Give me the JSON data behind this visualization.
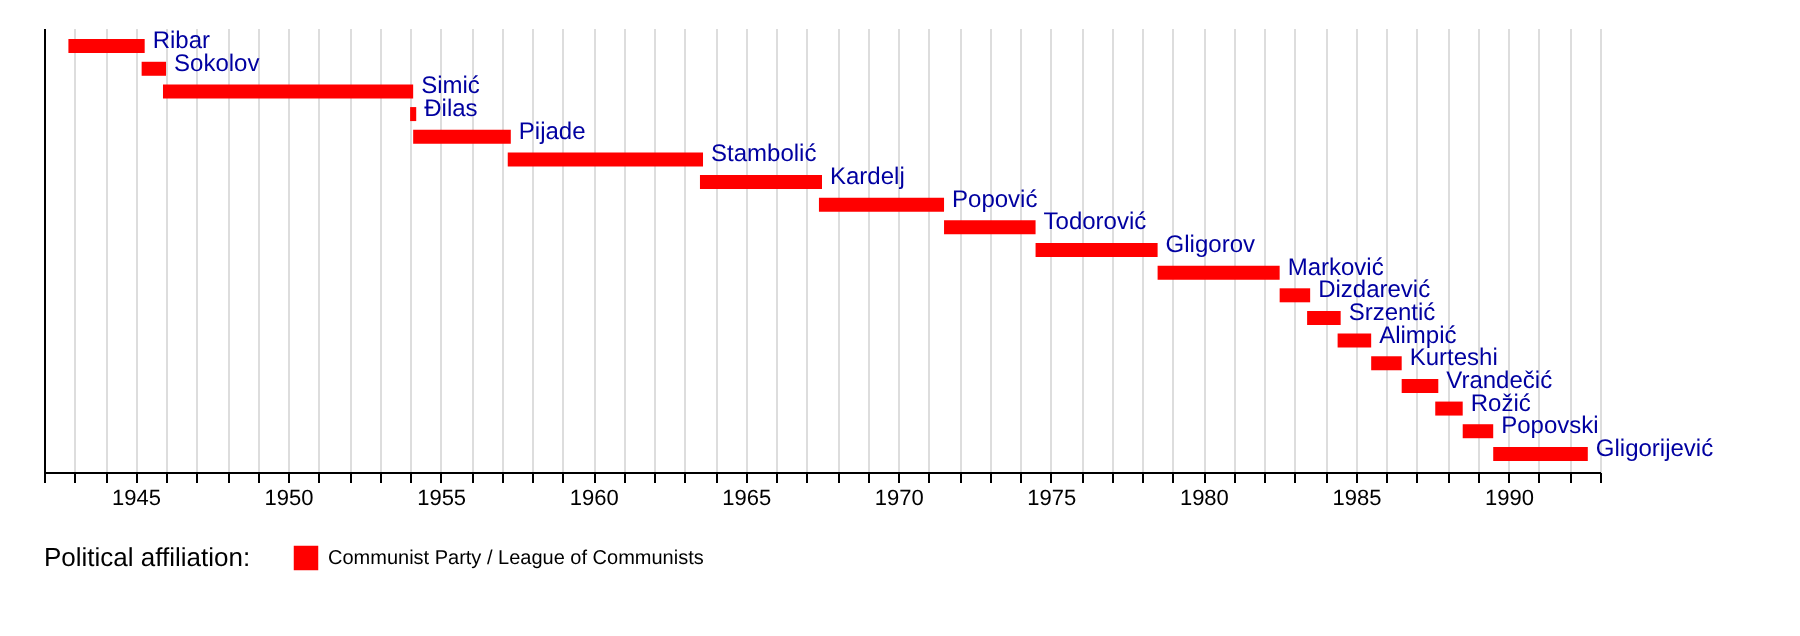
{
  "chart_data": {
    "type": "bar",
    "orientation": "horizontal",
    "legend_title": "Political affiliation:",
    "legend": "bottom",
    "grid": "x",
    "tick_labels": "x",
    "categories": [
      "Ribar",
      "Sokolov",
      "Simić",
      "Đilas",
      "Pijade",
      "Stambolić",
      "Kardelj",
      "Popović",
      "Todorović",
      "Gligorov",
      "Marković",
      "Dizdarević",
      "Srzentić",
      "Alimpić",
      "Kurteshi",
      "Vrandečić",
      "Rožić",
      "Popovski",
      "Gligorijević"
    ],
    "series": [
      {
        "name": "Communist Party / League of Communists",
        "color": "#ff0000",
        "base": [
          1942.8,
          1945.2,
          1945.9,
          1954.0,
          1954.1,
          1957.2,
          1963.5,
          1967.4,
          1971.5,
          1974.5,
          1978.5,
          1982.5,
          1983.4,
          1984.4,
          1985.5,
          1986.5,
          1987.6,
          1988.5,
          1989.5
        ],
        "values": [
          2.5,
          0.8,
          8.2,
          0.2,
          3.2,
          6.4,
          4.0,
          4.1,
          3.0,
          4.0,
          4.0,
          1.0,
          1.1,
          1.1,
          1.0,
          1.2,
          0.9,
          1.0,
          3.1
        ]
      }
    ],
    "xlim": [
      1942,
      1993
    ],
    "xticks": [
      {
        "value": 1942,
        "label": null
      },
      {
        "value": 1943,
        "label": null
      },
      {
        "value": 1944,
        "label": null
      },
      1945,
      {
        "value": 1946,
        "label": null
      },
      {
        "value": 1947,
        "label": null
      },
      {
        "value": 1948,
        "label": null
      },
      {
        "value": 1949,
        "label": null
      },
      1950,
      {
        "value": 1951,
        "label": null
      },
      {
        "value": 1952,
        "label": null
      },
      {
        "value": 1953,
        "label": null
      },
      {
        "value": 1954,
        "label": null
      },
      1955,
      {
        "value": 1956,
        "label": null
      },
      {
        "value": 1957,
        "label": null
      },
      {
        "value": 1958,
        "label": null
      },
      {
        "value": 1959,
        "label": null
      },
      1960,
      {
        "value": 1961,
        "label": null
      },
      {
        "value": 1962,
        "label": null
      },
      {
        "value": 1963,
        "label": null
      },
      {
        "value": 1964,
        "label": null
      },
      1965,
      {
        "value": 1966,
        "label": null
      },
      {
        "value": 1967,
        "label": null
      },
      {
        "value": 1968,
        "label": null
      },
      {
        "value": 1969,
        "label": null
      },
      1970,
      {
        "value": 1971,
        "label": null
      },
      {
        "value": 1972,
        "label": null
      },
      {
        "value": 1973,
        "label": null
      },
      {
        "value": 1974,
        "label": null
      },
      1975,
      {
        "value": 1976,
        "label": null
      },
      {
        "value": 1977,
        "label": null
      },
      {
        "value": 1978,
        "label": null
      },
      {
        "value": 1979,
        "label": null
      },
      1980,
      {
        "value": 1981,
        "label": null
      },
      {
        "value": 1982,
        "label": null
      },
      {
        "value": 1983,
        "label": null
      },
      {
        "value": 1984,
        "label": null
      },
      1985,
      {
        "value": 1986,
        "label": null
      },
      {
        "value": 1987,
        "label": null
      },
      {
        "value": 1988,
        "label": null
      },
      {
        "value": 1989,
        "label": null
      },
      1990,
      {
        "value": 1991,
        "label": null
      },
      {
        "value": 1992,
        "label": null
      },
      {
        "value": 1993,
        "label": null
      }
    ]
  }
}
